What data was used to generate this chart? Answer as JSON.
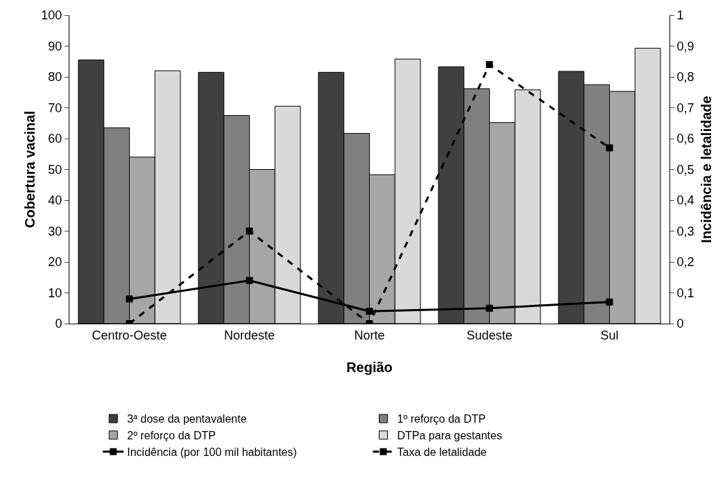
{
  "chart_data": {
    "type": "bar",
    "xlabel": "Região",
    "ylabel": "Cobertura vacinal",
    "y2label": "Incidência e letalidade",
    "categories": [
      "Centro-Oeste",
      "Nordeste",
      "Norte",
      "Sudeste",
      "Sul"
    ],
    "series": [
      {
        "name": "3ª dose da pentavalente",
        "color": "#404040",
        "values": [
          85.5,
          81.5,
          81.5,
          83.3,
          81.8
        ]
      },
      {
        "name": "1º reforço da DTP",
        "color": "#808080",
        "values": [
          63.5,
          67.5,
          61.7,
          76.2,
          77.5
        ]
      },
      {
        "name": "2º reforço da DTP",
        "color": "#a6a6a6",
        "values": [
          54,
          50,
          48.3,
          65.2,
          75.3
        ]
      },
      {
        "name": "DTPa para gestantes",
        "color": "#d9d9d9",
        "values": [
          82,
          70.5,
          85.8,
          75.8,
          89.3
        ]
      },
      {
        "name": "Incidência (por 100 mil habitantes)",
        "type": "line",
        "axis": "y2",
        "color": "#000000",
        "line_style": "solid",
        "marker": "square",
        "values": [
          0.08,
          0.14,
          0.04,
          0.05,
          0.07
        ]
      },
      {
        "name": "Taxa de letalidade",
        "type": "line",
        "axis": "y2",
        "color": "#000000",
        "line_style": "dashed",
        "marker": "square",
        "values": [
          0,
          0.3,
          0,
          0.84,
          0.57
        ]
      }
    ],
    "ylim": [
      0,
      100
    ],
    "yticks": [
      0,
      10,
      20,
      30,
      40,
      50,
      60,
      70,
      80,
      90,
      100
    ],
    "y2lim": [
      0,
      1
    ],
    "y2ticks": [
      {
        "value": 0,
        "label": "0"
      },
      {
        "value": 0.1,
        "label": "0,1"
      },
      {
        "value": 0.2,
        "label": "0,2"
      },
      {
        "value": 0.3,
        "label": "0,3"
      },
      {
        "value": 0.4,
        "label": "0,4"
      },
      {
        "value": 0.5,
        "label": "0,5"
      },
      {
        "value": 0.6,
        "label": "0,6"
      },
      {
        "value": 0.7,
        "label": "0,7"
      },
      {
        "value": 0.8,
        "label": "0,8"
      },
      {
        "value": 0.9,
        "label": "0,9"
      },
      {
        "value": 1,
        "label": "1"
      }
    ],
    "grid": false,
    "legend": "bottom"
  }
}
